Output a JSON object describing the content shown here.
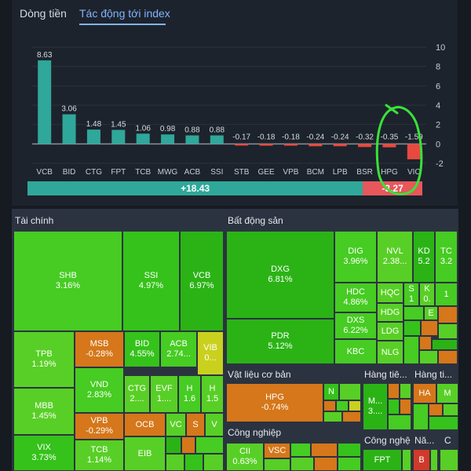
{
  "tabs": [
    {
      "label": "Dòng tiền"
    },
    {
      "label": "Tác động tới index"
    }
  ],
  "chart_data": {
    "type": "bar",
    "categories": [
      "VCB",
      "BID",
      "CTG",
      "FPT",
      "TCB",
      "MWG",
      "ACB",
      "SSI",
      "STB",
      "GEE",
      "VPB",
      "BCM",
      "LPB",
      "BSR",
      "HPG",
      "VIC"
    ],
    "values": [
      8.63,
      3.06,
      1.48,
      1.45,
      1.06,
      0.98,
      0.88,
      0.88,
      -0.17,
      -0.18,
      -0.18,
      -0.24,
      -0.24,
      -0.32,
      -0.35,
      -1.59
    ],
    "value_labels": [
      "8.63",
      "3.06",
      "1.48",
      "1.45",
      "1.06",
      "0.98",
      "0.88",
      "0.88",
      "-0.17",
      "-0.18",
      "-0.18",
      "-0.24",
      "-0.24",
      "-0.32",
      "-0.35",
      "-1.59"
    ],
    "ylim": [
      -2,
      10
    ],
    "yticks": [
      "10",
      "8",
      "6",
      "4",
      "2",
      "0",
      "-2"
    ],
    "ytick_values": [
      10,
      8,
      6,
      4,
      2,
      0,
      -2
    ],
    "colors": {
      "positive": "#2fa79a",
      "negative": "#e8493f"
    },
    "grid": true
  },
  "summary": {
    "positive": "+18.43",
    "negative": "-3.27",
    "positive_color": "#2fa79a",
    "negative_color": "#e8575b"
  },
  "heatmap": {
    "taichinh": {
      "title": "Tài chính"
    },
    "batdongsan": {
      "title": "Bất động sản"
    },
    "vatlieu": {
      "title": "Vật liệu cơ bản"
    },
    "congnghiep": {
      "title": "Công nghiệp"
    },
    "hangtieu1": {
      "title": "Hàng tiê..."
    },
    "hangtieu2": {
      "title": "Hàng ti..."
    },
    "congnghe": {
      "title": "Công nghệ"
    },
    "nang": {
      "title": "Nă..."
    },
    "c_sector": {
      "title": "C"
    },
    "cells": {
      "shb": {
        "sym": "SHB",
        "pct": "3.16%"
      },
      "ssi": {
        "sym": "SSI",
        "pct": "4.97%"
      },
      "vcb": {
        "sym": "VCB",
        "pct": "6.97%"
      },
      "tpb": {
        "sym": "TPB",
        "pct": "1.19%"
      },
      "msb": {
        "sym": "MSB",
        "pct": "-0.28%"
      },
      "bid": {
        "sym": "BID",
        "pct": "4.55%"
      },
      "acb": {
        "sym": "ACB",
        "pct": "2.74..."
      },
      "vib": {
        "sym": "VIB",
        "pct": "0..."
      },
      "vnd": {
        "sym": "VND",
        "pct": "2.83%"
      },
      "ctg": {
        "sym": "CTG",
        "pct": "2...."
      },
      "evf": {
        "sym": "EVF",
        "pct": "1...."
      },
      "h1": {
        "sym": "H",
        "pct": "1.6"
      },
      "h2": {
        "sym": "H",
        "pct": "1.5"
      },
      "mbb": {
        "sym": "MBB",
        "pct": "1.45%"
      },
      "vpb": {
        "sym": "VPB",
        "pct": "-0.29%"
      },
      "ocb": {
        "sym": "OCB"
      },
      "vc": {
        "sym": "VC"
      },
      "s": {
        "sym": "S"
      },
      "v": {
        "sym": "V"
      },
      "vix": {
        "sym": "VIX",
        "pct": "3.73%"
      },
      "tcb": {
        "sym": "TCB",
        "pct": "1.14%"
      },
      "eib": {
        "sym": "EIB"
      },
      "dxg": {
        "sym": "DXG",
        "pct": "6.81%"
      },
      "pdr": {
        "sym": "PDR",
        "pct": "5.12%"
      },
      "dig": {
        "sym": "DIG",
        "pct": "3.96%"
      },
      "nvl": {
        "sym": "NVL",
        "pct": "2.38..."
      },
      "kd": {
        "sym": "KD",
        "pct": "5.2"
      },
      "tc": {
        "sym": "TC",
        "pct": "3.2"
      },
      "hdc": {
        "sym": "HDC",
        "pct": "4.86%"
      },
      "hqc": {
        "sym": "HQC"
      },
      "s2": {
        "sym": "S",
        "pct": "1"
      },
      "k": {
        "sym": "K",
        "pct": "0."
      },
      "one": {
        "pct": "1"
      },
      "dxs": {
        "sym": "DXS",
        "pct": "6.22%"
      },
      "hdg": {
        "sym": "HDG"
      },
      "e": {
        "sym": "E"
      },
      "ldg": {
        "sym": "LDG"
      },
      "kbc": {
        "sym": "KBC"
      },
      "nlg": {
        "sym": "NLG"
      },
      "hpg": {
        "sym": "HPG",
        "pct": "-0.74%"
      },
      "n": {
        "sym": "N"
      },
      "m3": {
        "sym": "M...",
        "pct": "3...."
      },
      "ha": {
        "sym": "HA"
      },
      "m": {
        "sym": "M"
      },
      "cii": {
        "sym": "CII",
        "pct": "0.63%"
      },
      "vsc": {
        "sym": "VSC"
      },
      "fpt": {
        "sym": "FPT"
      },
      "b": {
        "sym": "B"
      }
    }
  }
}
